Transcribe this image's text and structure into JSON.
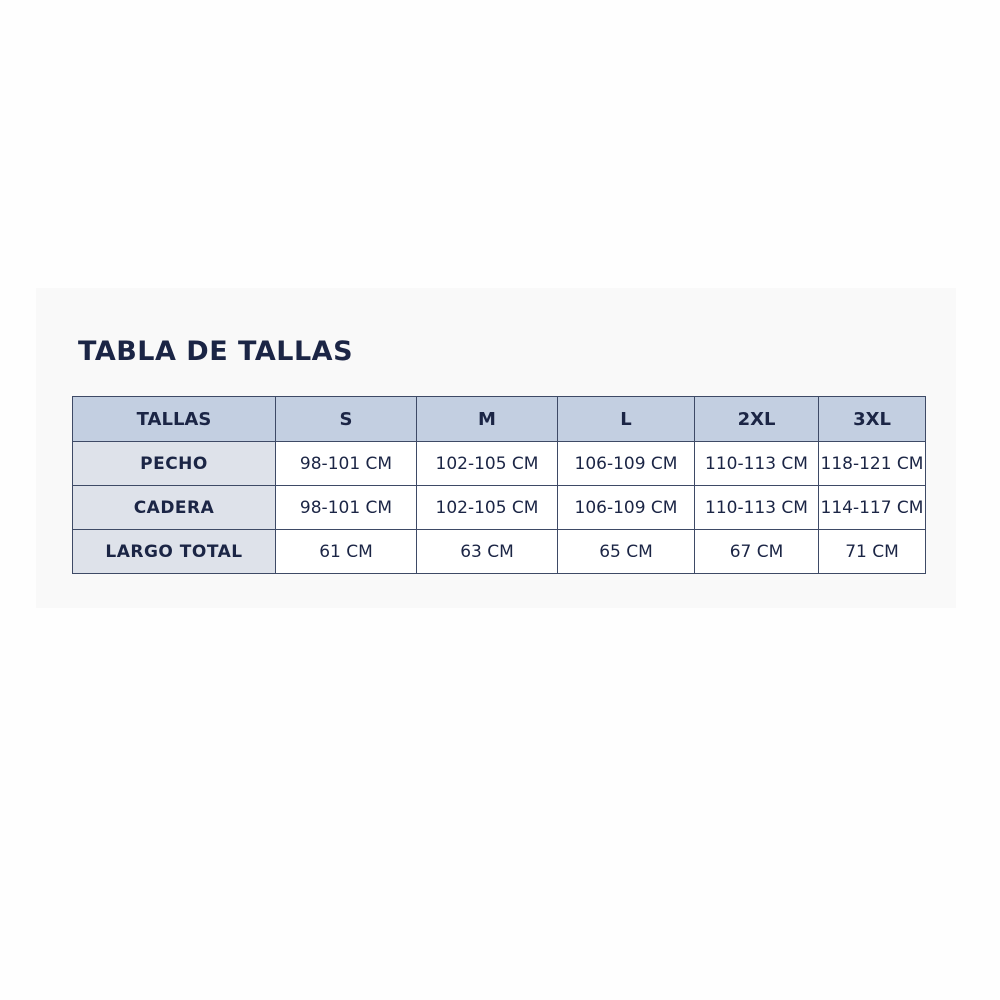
{
  "title": "TABLA DE TALLAS",
  "table": {
    "headers": [
      "TALLAS",
      "S",
      "M",
      "L",
      "2XL",
      "3XL"
    ],
    "rows": [
      {
        "label": "PECHO",
        "values": [
          "98-101 CM",
          "102-105 CM",
          "106-109 CM",
          "110-113 CM",
          "118-121 CM"
        ]
      },
      {
        "label": "CADERA",
        "values": [
          "98-101 CM",
          "102-105 CM",
          "106-109 CM",
          "110-113 CM",
          "114-117 CM"
        ]
      },
      {
        "label": "LARGO TOTAL",
        "values": [
          "61 CM",
          "63 CM",
          "65 CM",
          "67 CM",
          "71 CM"
        ]
      }
    ]
  },
  "colors": {
    "text": "#1b2545",
    "header_bg": "#c3cfe1",
    "row_label_bg": "#dee2ea",
    "border": "#3e4a66"
  }
}
